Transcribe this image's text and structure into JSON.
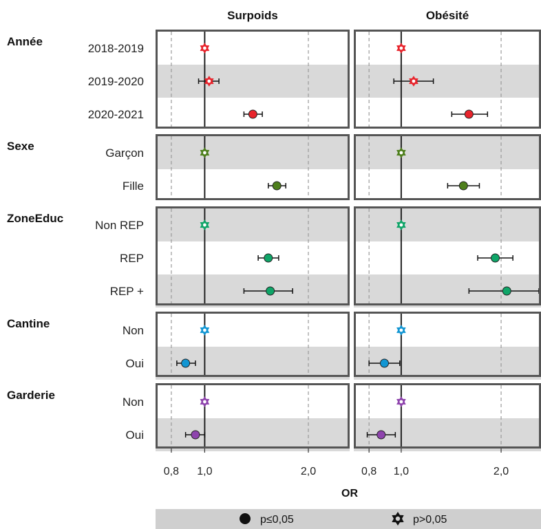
{
  "chart_data": {
    "type": "forest",
    "xlabel": "OR",
    "scale": "log",
    "xlim": [
      0.73,
      2.6
    ],
    "xticks": [
      "0,8",
      "1,0",
      "2,0"
    ],
    "xtick_values": [
      0.8,
      1.0,
      2.0
    ],
    "panels": [
      "Surpoids",
      "Obésité"
    ],
    "colors": {
      "Année": "#e8242c",
      "Sexe": "#4e7f1c",
      "ZoneEduc": "#0fa568",
      "Cantine": "#1296d3",
      "Garderie": "#8e44ad"
    },
    "groups": [
      {
        "name": "Année",
        "rows": [
          {
            "label": "2018-2019",
            "shaded": false,
            "surpoids": {
              "or": 1.0,
              "lo": 1.0,
              "hi": 1.0,
              "sig": false
            },
            "obesite": {
              "or": 1.0,
              "lo": 1.0,
              "hi": 1.0,
              "sig": false
            }
          },
          {
            "label": "2019-2020",
            "shaded": true,
            "surpoids": {
              "or": 1.03,
              "lo": 0.96,
              "hi": 1.1,
              "sig": false
            },
            "obesite": {
              "or": 1.09,
              "lo": 0.95,
              "hi": 1.25,
              "sig": false
            }
          },
          {
            "label": "2020-2021",
            "shaded": false,
            "surpoids": {
              "or": 1.38,
              "lo": 1.3,
              "hi": 1.47,
              "sig": true
            },
            "obesite": {
              "or": 1.6,
              "lo": 1.42,
              "hi": 1.82,
              "sig": true
            }
          }
        ]
      },
      {
        "name": "Sexe",
        "rows": [
          {
            "label": "Garçon",
            "shaded": true,
            "surpoids": {
              "or": 1.0,
              "lo": 1.0,
              "hi": 1.0,
              "sig": false
            },
            "obesite": {
              "or": 1.0,
              "lo": 1.0,
              "hi": 1.0,
              "sig": false
            }
          },
          {
            "label": "Fille",
            "shaded": false,
            "surpoids": {
              "or": 1.62,
              "lo": 1.53,
              "hi": 1.72,
              "sig": true
            },
            "obesite": {
              "or": 1.54,
              "lo": 1.38,
              "hi": 1.72,
              "sig": true
            }
          }
        ]
      },
      {
        "name": "ZoneEduc",
        "rows": [
          {
            "label": "Non REP",
            "shaded": true,
            "surpoids": {
              "or": 1.0,
              "lo": 1.0,
              "hi": 1.0,
              "sig": false
            },
            "obesite": {
              "or": 1.0,
              "lo": 1.0,
              "hi": 1.0,
              "sig": false
            }
          },
          {
            "label": "REP",
            "shaded": false,
            "surpoids": {
              "or": 1.53,
              "lo": 1.43,
              "hi": 1.64,
              "sig": true
            },
            "obesite": {
              "or": 1.92,
              "lo": 1.7,
              "hi": 2.17,
              "sig": true
            }
          },
          {
            "label": "REP +",
            "shaded": true,
            "surpoids": {
              "or": 1.55,
              "lo": 1.3,
              "hi": 1.8,
              "sig": true
            },
            "obesite": {
              "or": 2.08,
              "lo": 1.6,
              "hi": 2.6,
              "sig": true
            }
          }
        ]
      },
      {
        "name": "Cantine",
        "rows": [
          {
            "label": "Non",
            "shaded": false,
            "surpoids": {
              "or": 1.0,
              "lo": 1.0,
              "hi": 1.0,
              "sig": false
            },
            "obesite": {
              "or": 1.0,
              "lo": 1.0,
              "hi": 1.0,
              "sig": false
            }
          },
          {
            "label": "Oui",
            "shaded": true,
            "surpoids": {
              "or": 0.88,
              "lo": 0.83,
              "hi": 0.94,
              "sig": true
            },
            "obesite": {
              "or": 0.89,
              "lo": 0.8,
              "hi": 0.99,
              "sig": true
            }
          }
        ]
      },
      {
        "name": "Garderie",
        "rows": [
          {
            "label": "Non",
            "shaded": false,
            "surpoids": {
              "or": 1.0,
              "lo": 1.0,
              "hi": 1.0,
              "sig": false
            },
            "obesite": {
              "or": 1.0,
              "lo": 1.0,
              "hi": 1.0,
              "sig": false
            }
          },
          {
            "label": "Oui",
            "shaded": true,
            "surpoids": {
              "or": 0.94,
              "lo": 0.88,
              "hi": 1.0,
              "sig": true
            },
            "obesite": {
              "or": 0.87,
              "lo": 0.79,
              "hi": 0.96,
              "sig": true
            }
          }
        ]
      }
    ],
    "legend": [
      {
        "label": "p≤0,05",
        "marker": "circle"
      },
      {
        "label": "p>0,05",
        "marker": "star"
      }
    ]
  }
}
